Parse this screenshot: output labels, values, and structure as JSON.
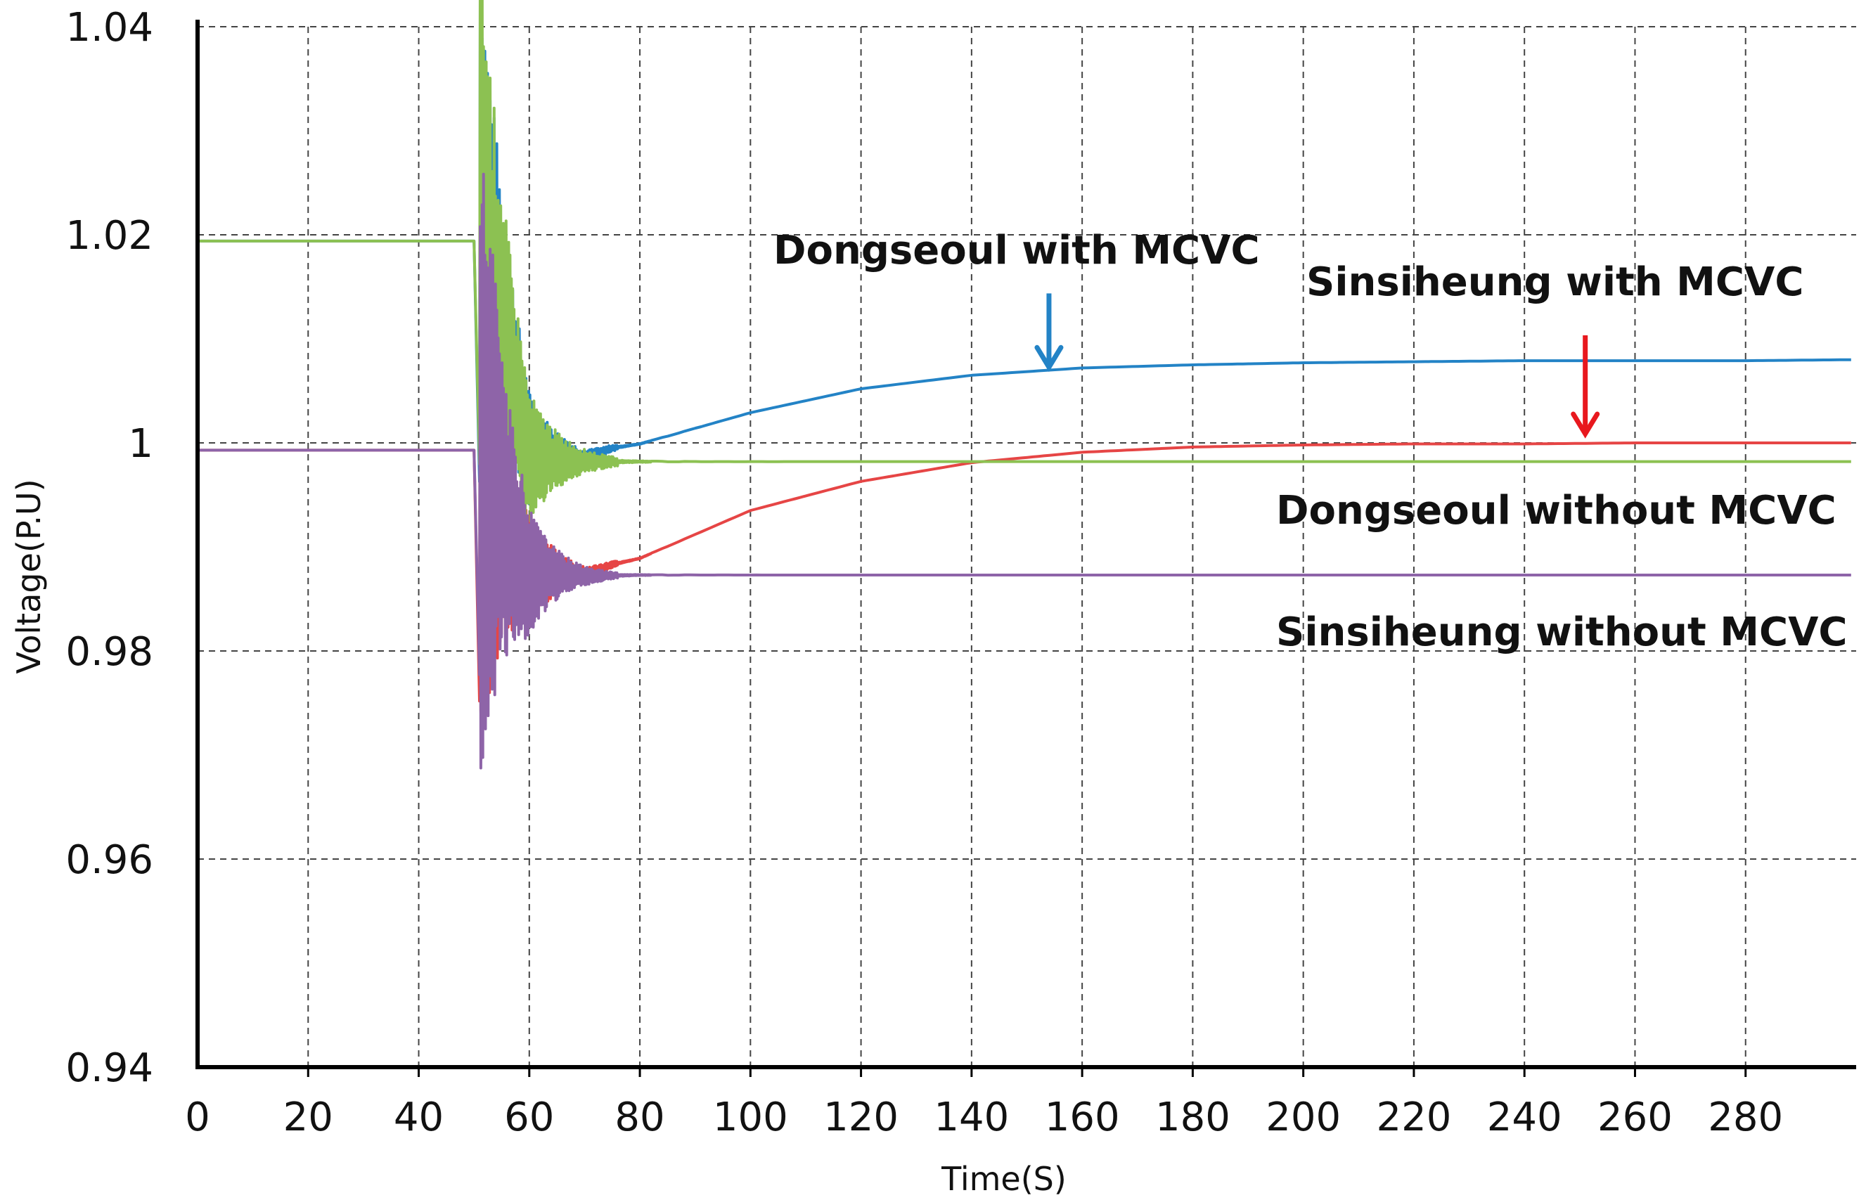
{
  "chart_data": {
    "type": "line",
    "title": "",
    "xlabel": "Time(S)",
    "ylabel": "Voltage(P.U)",
    "xlim": [
      0,
      300
    ],
    "ylim": [
      0.94,
      1.04
    ],
    "xticks": [
      0,
      20,
      40,
      60,
      80,
      100,
      120,
      140,
      160,
      180,
      200,
      220,
      240,
      260,
      280
    ],
    "xtick_labels": [
      "0",
      "20",
      "40",
      "60",
      "80",
      "100",
      "120",
      "140",
      "160",
      "180",
      "200",
      "220",
      "240",
      "260",
      "280"
    ],
    "yticks": [
      0.94,
      0.96,
      0.98,
      1.0,
      1.02,
      1.04
    ],
    "ytick_labels": [
      "0.94",
      "0.96",
      "0.98",
      "1",
      "1.02",
      "1.04"
    ],
    "grid": true,
    "event": {
      "time": 51,
      "note": "disturbance with damped oscillation until about t=75"
    },
    "series": [
      {
        "name": "Dongseoul with MCVC",
        "color": "#2383c6",
        "x": [
          0,
          51,
          60,
          70,
          75,
          80,
          100,
          120,
          140,
          160,
          180,
          200,
          220,
          240,
          260,
          280,
          300
        ],
        "y": [
          1.0194,
          1.0194,
          0.9995,
          0.9985,
          0.9995,
          0.9999,
          1.0029,
          1.0052,
          1.0065,
          1.0072,
          1.0075,
          1.0077,
          1.0078,
          1.0079,
          1.0079,
          1.0079,
          1.008
        ]
      },
      {
        "name": "Sinsiheung with MCVC",
        "color": "#e64545",
        "x": [
          0,
          51,
          60,
          70,
          75,
          80,
          100,
          120,
          140,
          160,
          180,
          200,
          220,
          240,
          260,
          280,
          300
        ],
        "y": [
          0.9993,
          0.9993,
          0.9878,
          0.9873,
          0.9883,
          0.9889,
          0.9935,
          0.9963,
          0.9981,
          0.9991,
          0.9996,
          0.9998,
          0.9999,
          0.9999,
          1.0,
          1.0,
          1.0
        ]
      },
      {
        "name": "Dongseoul without MCVC",
        "color": "#8cc152",
        "x": [
          0,
          51,
          60,
          70,
          80,
          100,
          150,
          200,
          250,
          300
        ],
        "y": [
          1.0194,
          1.0194,
          0.9985,
          0.9982,
          0.9982,
          0.9982,
          0.9982,
          0.9982,
          0.9982,
          0.9982
        ]
      },
      {
        "name": "Sinsiheung without MCVC",
        "color": "#8e64a8",
        "x": [
          0,
          51,
          60,
          70,
          80,
          100,
          150,
          200,
          250,
          300
        ],
        "y": [
          0.9993,
          0.9993,
          0.9875,
          0.9872,
          0.9873,
          0.9873,
          0.9873,
          0.9873,
          0.9873,
          0.9873
        ]
      }
    ],
    "annotations": [
      {
        "text": "Dongseoul  with  MCVC",
        "series": "Dongseoul with MCVC",
        "arrow_color": "#2383c6",
        "arrow_target": [
          154,
          1.0066
        ]
      },
      {
        "text": "Sinsiheung  with  MCVC",
        "series": "Sinsiheung with MCVC",
        "arrow_color": "#e8181e",
        "arrow_target": [
          251,
          1.0002
        ]
      },
      {
        "text": "Dongseoul  without  MCVC",
        "series": "Dongseoul without MCVC"
      },
      {
        "text": "Sinsiheung  without  MCVC",
        "series": "Sinsiheung without MCVC"
      }
    ]
  }
}
